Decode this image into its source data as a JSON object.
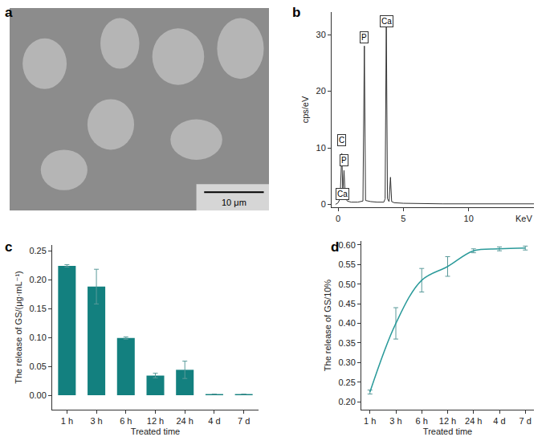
{
  "chart_data": [
    {
      "type": "image",
      "title": "a",
      "annotations": [
        "10 μm"
      ]
    },
    {
      "type": "line",
      "title": "b",
      "xlabel": "KeV",
      "ylabel": "cps/eV",
      "x": [
        -0.2,
        0,
        0.15,
        0.28,
        0.36,
        0.45,
        0.55,
        0.7,
        1.0,
        1.5,
        1.9,
        2.01,
        2.1,
        2.5,
        3.0,
        3.5,
        3.6,
        3.69,
        3.78,
        3.9,
        4.01,
        4.1,
        4.3,
        5,
        8,
        10,
        15
      ],
      "values": [
        0,
        0.3,
        1,
        9,
        2,
        6,
        1.2,
        0.6,
        0.4,
        0.4,
        0.6,
        28,
        0.7,
        0.5,
        0.4,
        0.4,
        1,
        33,
        1,
        0.5,
        4.8,
        0.5,
        0.3,
        0.2,
        0.1,
        0.1,
        0.1
      ],
      "color": "#333333",
      "xlim": [
        -0.5,
        15
      ],
      "xticks": [
        0,
        5,
        10
      ],
      "ylim": [
        -0.5,
        34
      ],
      "yticks": [
        0,
        10,
        20,
        30
      ],
      "annotations": [
        {
          "text": "C",
          "x": 0.28,
          "y": 11.3
        },
        {
          "text": "P",
          "x": 0.45,
          "y": 7.8
        },
        {
          "text": "Ca",
          "x": 0.3,
          "y": 1.8
        },
        {
          "text": "P",
          "x": 2.01,
          "y": 29.5
        },
        {
          "text": "Ca",
          "x": 3.69,
          "y": 32.3
        }
      ]
    },
    {
      "type": "bar",
      "title": "c",
      "xlabel": "Treated time",
      "ylabel": "The release of GS/(μg·mL⁻¹)",
      "categories": [
        "1 h",
        "3 h",
        "6 h",
        "12 h",
        "24 h",
        "4 d",
        "7 d"
      ],
      "values": [
        0.224,
        0.188,
        0.099,
        0.034,
        0.044,
        0.002,
        0.002
      ],
      "errors": [
        0.002,
        0.03,
        0.002,
        0.004,
        0.015,
        0,
        0
      ],
      "color": "#13807f",
      "ylim": [
        -0.025,
        0.26
      ],
      "yticks": [
        {
          "value": 0,
          "label": "0.00"
        },
        {
          "value": 0.05,
          "label": "0.05"
        },
        {
          "value": 0.1,
          "label": "0.10"
        },
        {
          "value": 0.15,
          "label": "0.15"
        },
        {
          "value": 0.2,
          "label": "0.20"
        },
        {
          "value": 0.25,
          "label": "0.25"
        }
      ]
    },
    {
      "type": "line",
      "title": "d",
      "xlabel": "Treated time",
      "ylabel": "The release of GS/10%",
      "categories": [
        "1 h",
        "3 h",
        "6 h",
        "12 h",
        "24 h",
        "4 d",
        "7 d"
      ],
      "values": [
        0.225,
        0.4,
        0.51,
        0.545,
        0.585,
        0.59,
        0.592
      ],
      "errors": [
        0.005,
        0.04,
        0.03,
        0.025,
        0.005,
        0.005,
        0.005
      ],
      "color": "#2a9a9a",
      "line_style": "smooth",
      "ylim": [
        0.18,
        0.61
      ],
      "yticks": [
        {
          "value": 0.2,
          "label": "0.20"
        },
        {
          "value": 0.25,
          "label": "0.25"
        },
        {
          "value": 0.3,
          "label": "0.30"
        },
        {
          "value": 0.35,
          "label": "0.35"
        },
        {
          "value": 0.4,
          "label": "0.40"
        },
        {
          "value": 0.45,
          "label": "0.45"
        },
        {
          "value": 0.5,
          "label": "0.50"
        },
        {
          "value": 0.55,
          "label": "0.55"
        },
        {
          "value": 0.6,
          "label": "0.60"
        }
      ]
    }
  ]
}
